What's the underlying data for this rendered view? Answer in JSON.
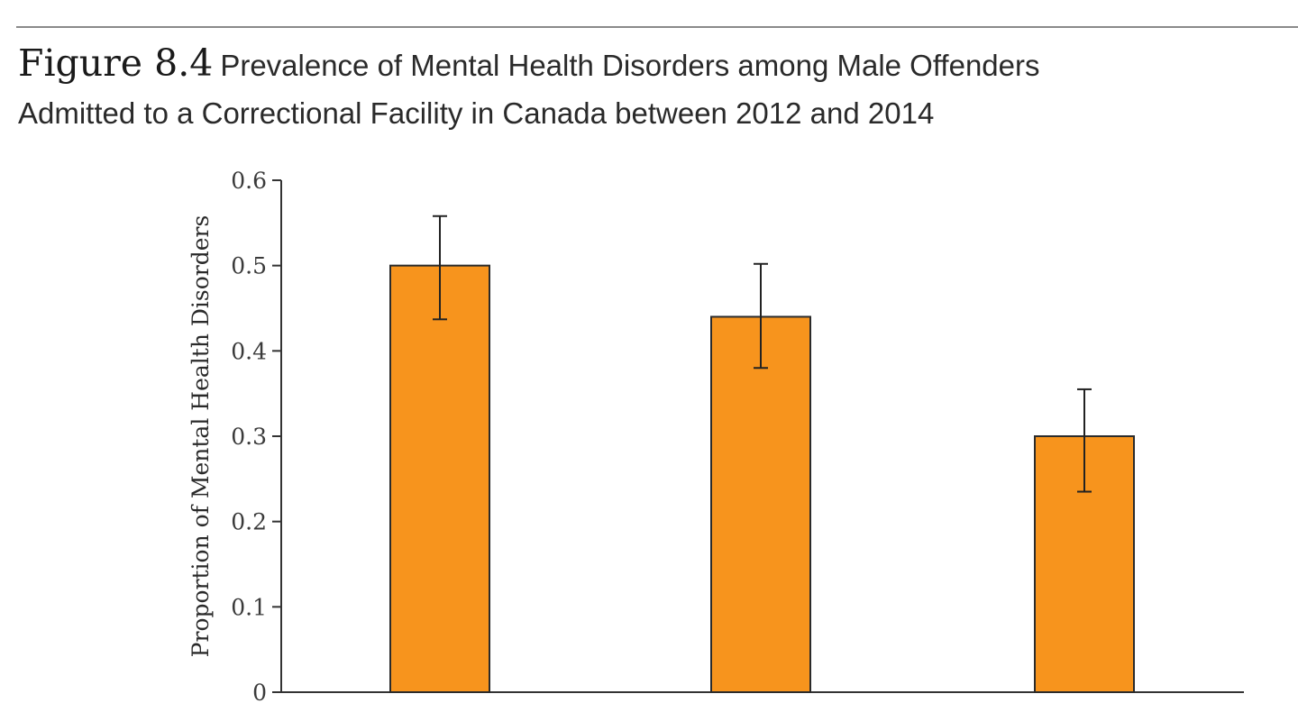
{
  "figure": {
    "label": "Figure 8.4",
    "caption_line1": "Prevalence of Mental Health Disorders among Male Offenders",
    "caption_line2": "Admitted to a Correctional Facility in Canada between 2012 and 2014"
  },
  "chart_data": {
    "type": "bar",
    "title": "Figure 8.4 Prevalence of Mental Health Disorders among Male Offenders Admitted to a Correctional Facility in Canada between 2012 and 2014",
    "xlabel": "",
    "ylabel": "Proportion of Mental Health Disorders",
    "ylim": [
      0,
      0.6
    ],
    "yticks": [
      "0",
      "0.1",
      "0.2",
      "0.3",
      "0.4",
      "0.5",
      "0.6"
    ],
    "categories": [
      "",
      "",
      ""
    ],
    "values": [
      0.5,
      0.44,
      0.3
    ],
    "error_low": [
      0.437,
      0.38,
      0.235
    ],
    "error_high": [
      0.558,
      0.502,
      0.355
    ],
    "bar_color": "#f7941d",
    "grid": false,
    "legend": "none"
  }
}
